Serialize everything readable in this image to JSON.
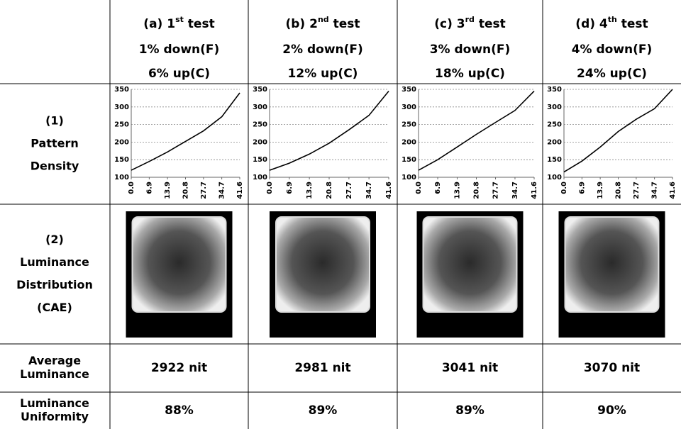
{
  "row_labels": {
    "pattern_density": [
      "(1)",
      "Pattern",
      "Density"
    ],
    "luminance_distribution": [
      "(2)",
      "Luminance",
      "Distribution",
      "(CAE)"
    ],
    "average_luminance": [
      "Average",
      "Luminance"
    ],
    "luminance_uniformity": [
      "Luminance",
      "Uniformity"
    ]
  },
  "columns": [
    {
      "test": [
        "(a) 1",
        "st",
        " test"
      ],
      "down": "1% down(F)",
      "up": "6% up(C)",
      "chart": {
        "type": "line",
        "x": [
          0,
          6.9,
          13.9,
          20.8,
          27.7,
          34.7,
          41.6
        ],
        "values": [
          120,
          145,
          172,
          202,
          232,
          272,
          340
        ],
        "color": "#000000",
        "xlim": [
          0,
          41.6
        ],
        "xticks": [
          {
            "value": 0,
            "label": "0.0"
          },
          6.9,
          13.9,
          20.8,
          27.7,
          34.7,
          41.6
        ],
        "ylim": [
          100,
          350
        ],
        "yticks": [
          100,
          150,
          200,
          250,
          300,
          350
        ],
        "grid": true
      },
      "average_luminance": "2922 nit",
      "uniformity": "88%"
    },
    {
      "test": [
        "(b) 2",
        "nd",
        " test"
      ],
      "down": "2% down(F)",
      "up": "12% up(C)",
      "chart": {
        "type": "line",
        "x": [
          0,
          6.9,
          13.9,
          20.8,
          27.7,
          34.7,
          41.6
        ],
        "values": [
          120,
          140,
          166,
          197,
          235,
          276,
          345
        ],
        "color": "#000000",
        "xlim": [
          0,
          41.6
        ],
        "xticks": [
          {
            "value": 0,
            "label": "0.0"
          },
          6.9,
          13.9,
          20.8,
          27.7,
          34.7,
          41.6
        ],
        "ylim": [
          100,
          350
        ],
        "yticks": [
          100,
          150,
          200,
          250,
          300,
          350
        ],
        "grid": true
      },
      "average_luminance": "2981 nit",
      "uniformity": "89%"
    },
    {
      "test": [
        "(c) 3",
        "rd",
        " test"
      ],
      "down": "3% down(F)",
      "up": "18% up(C)",
      "chart": {
        "type": "line",
        "x": [
          0,
          6.9,
          13.9,
          20.8,
          27.7,
          34.7,
          41.6
        ],
        "values": [
          120,
          150,
          186,
          222,
          256,
          290,
          345
        ],
        "color": "#000000",
        "xlim": [
          0,
          41.6
        ],
        "xticks": [
          {
            "value": 0,
            "label": "0.0"
          },
          6.9,
          13.9,
          20.8,
          27.7,
          34.7,
          41.6
        ],
        "ylim": [
          100,
          350
        ],
        "yticks": [
          100,
          150,
          200,
          250,
          300,
          350
        ],
        "grid": true
      },
      "average_luminance": "3041 nit",
      "uniformity": "89%"
    },
    {
      "test": [
        "(d) 4",
        "th",
        " test"
      ],
      "down": "4% down(F)",
      "up": "24% up(C)",
      "chart": {
        "type": "line",
        "x": [
          0,
          6.9,
          13.9,
          20.8,
          27.7,
          34.7,
          41.6
        ],
        "values": [
          115,
          146,
          186,
          230,
          265,
          295,
          350
        ],
        "color": "#000000",
        "xlim": [
          0,
          41.6
        ],
        "xticks": [
          {
            "value": 0,
            "label": "0.0"
          },
          6.9,
          13.9,
          20.8,
          27.7,
          34.7,
          41.6
        ],
        "ylim": [
          100,
          350
        ],
        "yticks": [
          100,
          150,
          200,
          250,
          300,
          350
        ],
        "grid": true
      },
      "average_luminance": "3070 nit",
      "uniformity": "90%"
    }
  ]
}
